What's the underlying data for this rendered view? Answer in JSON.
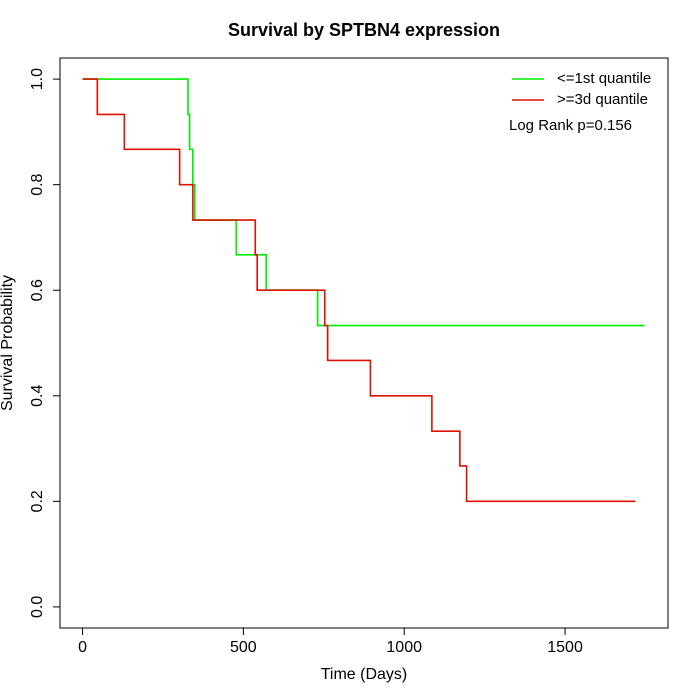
{
  "chart_data": {
    "type": "line",
    "step": true,
    "title": "Survival by SPTBN4 expression",
    "x_label": "Time (Days)",
    "y_label": "Survival Probability",
    "annotation": "Log Rank p=0.156",
    "legend": "topright",
    "xlim": [
      -70,
      1820
    ],
    "ylim": [
      -0.04,
      1.04
    ],
    "xticks": [
      0,
      500,
      1000,
      1500
    ],
    "yticks": [
      {
        "value": 0,
        "label": "0.0"
      },
      0.2,
      0.4,
      0.6,
      0.8,
      {
        "value": 1,
        "label": "1.0"
      }
    ],
    "series": [
      {
        "name": "<=1st quantile",
        "color": "#00ee00",
        "x": [
          0,
          328,
          333,
          343,
          349,
          478,
          571,
          731,
          1747
        ],
        "values": [
          1,
          0.933,
          0.867,
          0.8,
          0.733,
          0.667,
          0.6,
          0.533,
          0.533
        ]
      },
      {
        "name": ">=3d quantile",
        "color": "#dd1100",
        "x": [
          0,
          46,
          130,
          302,
          343,
          537,
          543,
          753,
          762,
          895,
          1086,
          1173,
          1194,
          1719
        ],
        "values": [
          1,
          0.933,
          0.867,
          0.8,
          0.733,
          0.667,
          0.6,
          0.533,
          0.467,
          0.4,
          0.333,
          0.267,
          0.2,
          0.2
        ]
      }
    ]
  }
}
